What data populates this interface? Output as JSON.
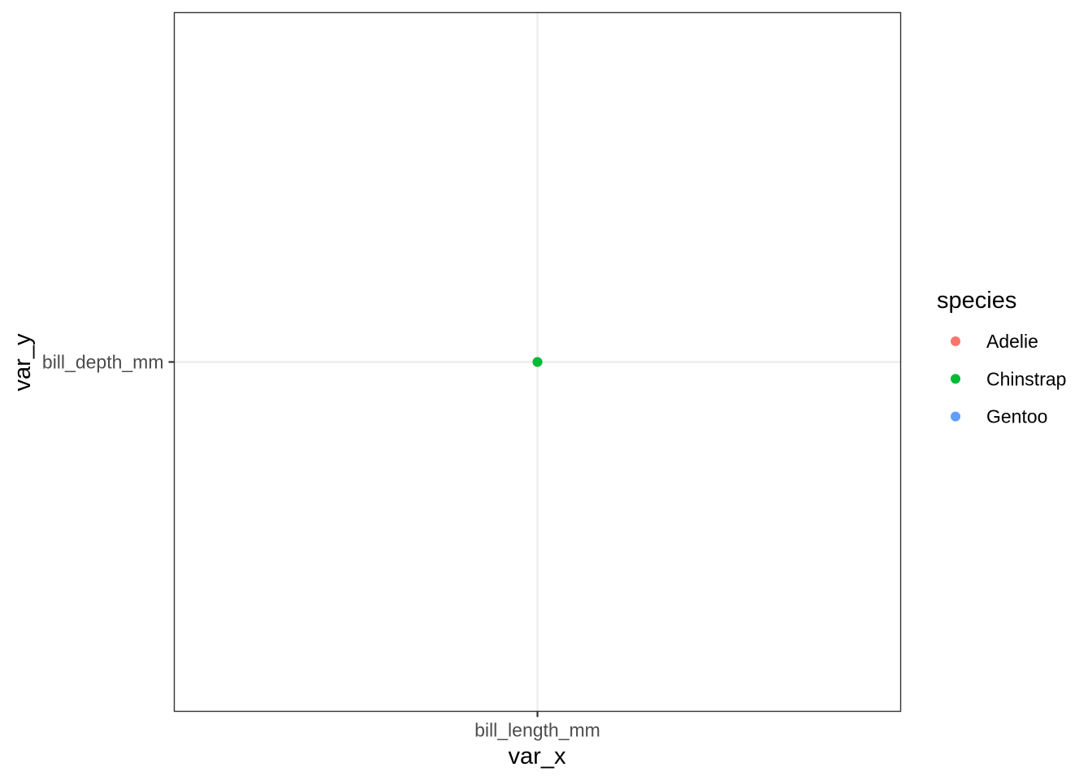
{
  "chart_data": {
    "type": "scatter",
    "xlabel": "var_x",
    "ylabel": "var_y",
    "x_categories": [
      "bill_length_mm"
    ],
    "y_categories": [
      "bill_depth_mm"
    ],
    "grid": true,
    "legend_position": "right",
    "legend": {
      "title": "species",
      "entries": [
        {
          "label": "Adelie",
          "color": "#F8766D"
        },
        {
          "label": "Chinstrap",
          "color": "#00BA38"
        },
        {
          "label": "Gentoo",
          "color": "#619CFF"
        }
      ]
    },
    "points": [
      {
        "x": "bill_length_mm",
        "y": "bill_depth_mm",
        "species": "Adelie"
      },
      {
        "x": "bill_length_mm",
        "y": "bill_depth_mm",
        "species": "Chinstrap"
      }
    ]
  },
  "colors": {
    "grid": "#ebebeb",
    "panel_border": "#333333",
    "tick": "#333333"
  }
}
